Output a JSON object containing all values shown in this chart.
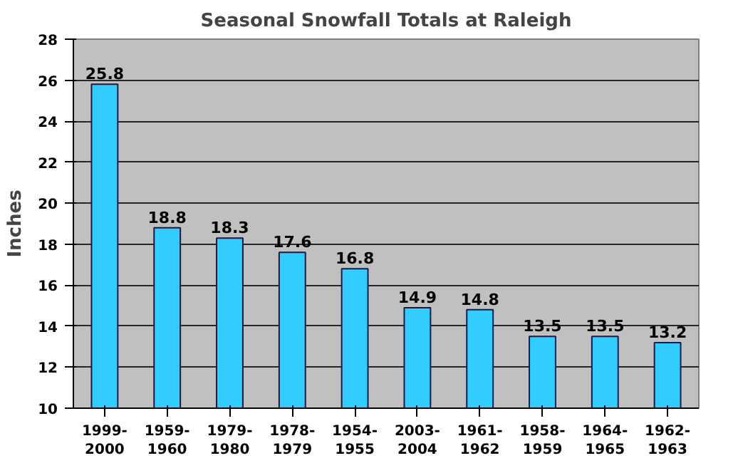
{
  "chart_data": {
    "type": "bar",
    "title": "Seasonal Snowfall Totals at Raleigh",
    "ylabel": "Inches",
    "categories": [
      "1999-2000",
      "1959-1960",
      "1979-1980",
      "1978-1979",
      "1954-1955",
      "2003-2004",
      "1961-1962",
      "1958-1959",
      "1964-1965",
      "1962-1963"
    ],
    "values": [
      25.8,
      18.8,
      18.3,
      17.6,
      16.8,
      14.9,
      14.8,
      13.5,
      13.5,
      13.2
    ],
    "color": "#33ccff",
    "ylim": [
      10,
      28
    ],
    "yticks": [
      10,
      12,
      14,
      16,
      18,
      20,
      22,
      24,
      26,
      28
    ],
    "grid": "y",
    "data_labels": true
  }
}
